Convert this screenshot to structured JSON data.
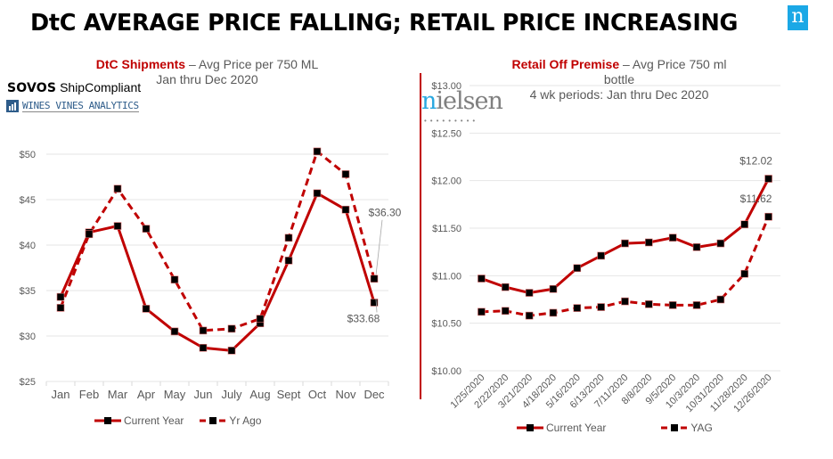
{
  "page": {
    "title": "DtC AVERAGE PRICE FALLING; RETAIL PRICE INCREASING",
    "logos": {
      "sovos_bold": "SOVOS",
      "sovos_rest": " ShipCompliant",
      "wva": "WINES VINES ANALYTICS",
      "nielsen_first": "n",
      "nielsen_rest": "ielsen",
      "nielsen_dots": "•••••••••",
      "corner_logo": "n"
    },
    "colors": {
      "series_red": "#c00000",
      "marker": "#000000",
      "grid": "#e6e6e6",
      "nielsen_blue": "#1ba8e6"
    }
  },
  "chart_data": [
    {
      "type": "line",
      "title_bold": "DtC Shipments",
      "title_rest": " – Avg Price per 750 ML",
      "subtitle": "Jan thru Dec 2020",
      "xlabel": "",
      "ylabel": "",
      "categories": [
        "Jan",
        "Feb",
        "Mar",
        "Apr",
        "May",
        "Jun",
        "July",
        "Aug",
        "Sept",
        "Oct",
        "Nov",
        "Dec"
      ],
      "ylim": [
        25,
        50
      ],
      "yticks": [
        25,
        30,
        35,
        40,
        45,
        50
      ],
      "ytick_labels": [
        "$25",
        "$30",
        "$35",
        "$40",
        "$45",
        "$50"
      ],
      "grid": true,
      "legend_position": "bottom",
      "series": [
        {
          "name": "Current Year",
          "style": "solid",
          "values": [
            34.3,
            41.4,
            42.1,
            33.0,
            30.5,
            28.7,
            28.4,
            31.4,
            38.3,
            45.7,
            43.9,
            33.68
          ]
        },
        {
          "name": "Yr Ago",
          "style": "dashed",
          "values": [
            33.1,
            41.2,
            46.2,
            41.8,
            36.2,
            30.6,
            30.8,
            31.9,
            40.8,
            50.3,
            47.8,
            36.3
          ]
        }
      ],
      "annotations": [
        {
          "series": "Yr Ago",
          "index": 11,
          "text": "$36.30"
        },
        {
          "series": "Current Year",
          "index": 11,
          "text": "$33.68"
        }
      ]
    },
    {
      "type": "line",
      "title_bold": "Retail Off Premise",
      "title_rest": " – Avg Price 750 ml",
      "title_line2": "bottle",
      "subtitle": "4 wk periods: Jan thru Dec 2020",
      "xlabel": "",
      "ylabel": "",
      "categories": [
        "1/25/2020",
        "2/22/2020",
        "3/21/2020",
        "4/18/2020",
        "5/16/2020",
        "6/13/2020",
        "7/11/2020",
        "8/8/2020",
        "9/5/2020",
        "10/3/2020",
        "10/31/2020",
        "11/28/2020",
        "12/26/2020"
      ],
      "ylim": [
        10,
        13
      ],
      "yticks": [
        10,
        10.5,
        11,
        11.5,
        12,
        12.5,
        13
      ],
      "ytick_labels": [
        "$10.00",
        "$10.50",
        "$11.00",
        "$11.50",
        "$12.00",
        "$12.50",
        "$13.00"
      ],
      "grid": true,
      "legend_position": "bottom",
      "series": [
        {
          "name": "Current Year",
          "style": "solid",
          "values": [
            10.97,
            10.88,
            10.82,
            10.86,
            11.08,
            11.21,
            11.34,
            11.35,
            11.4,
            11.3,
            11.34,
            11.54,
            12.02
          ]
        },
        {
          "name": "YAG",
          "style": "dashed",
          "values": [
            10.62,
            10.63,
            10.58,
            10.61,
            10.66,
            10.67,
            10.73,
            10.7,
            10.69,
            10.69,
            10.75,
            11.02,
            11.62
          ]
        }
      ],
      "annotations": [
        {
          "series": "Current Year",
          "index": 12,
          "text": "$12.02"
        },
        {
          "series": "YAG",
          "index": 12,
          "text": "$11.62"
        }
      ]
    }
  ]
}
